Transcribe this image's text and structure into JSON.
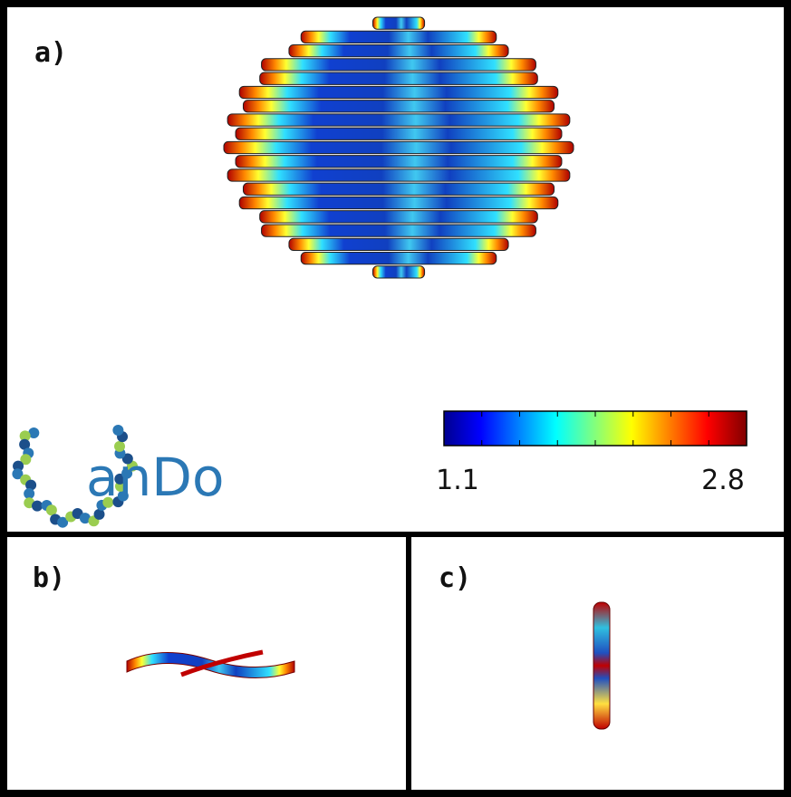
{
  "panels": [
    {
      "label": "a)"
    },
    {
      "label": "b)"
    },
    {
      "label": "c)"
    }
  ],
  "logo": "anDo",
  "colorbar": {
    "min": 1.1,
    "max": 2.8
  }
}
